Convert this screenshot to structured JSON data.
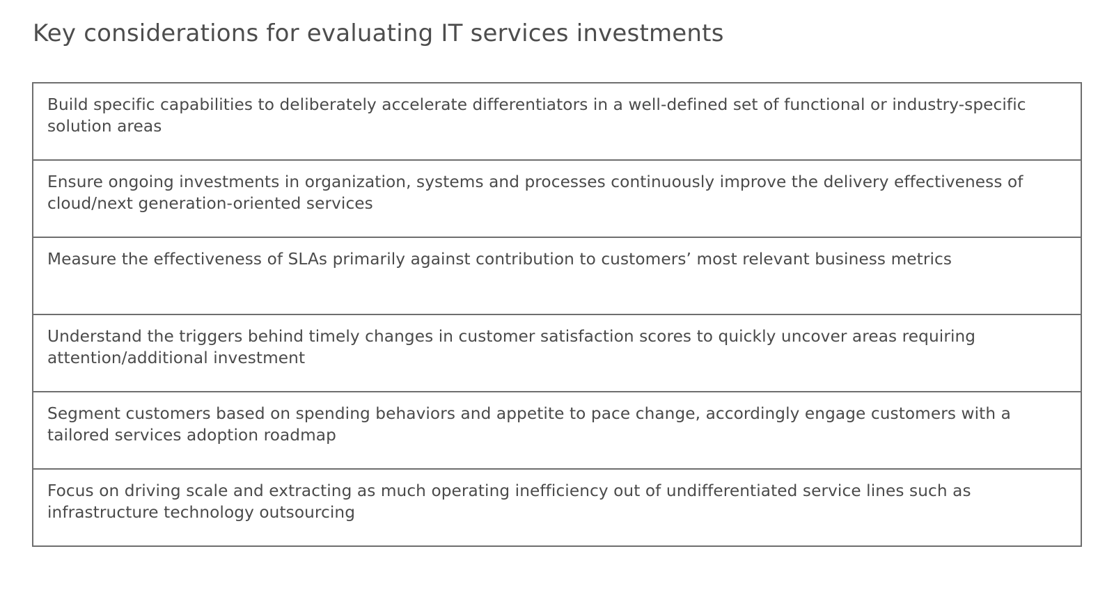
{
  "title": "Key considerations for evaluating IT services investments",
  "considerations": [
    "Build specific capabilities to deliberately accelerate differentiators in a well-defined set of functional or industry-specific solution areas",
    "Ensure ongoing investments in organization, systems and processes continuously improve the delivery effectiveness of cloud/next generation-oriented services",
    "Measure the effectiveness of SLAs primarily against contribution to customers’ most relevant business metrics",
    "Understand the triggers behind timely changes in customer satisfaction scores to quickly uncover areas requiring attention/additional investment",
    "Segment customers based on spending behaviors and appetite to pace change, accordingly engage customers with a tailored services adoption roadmap",
    "Focus on driving scale and extracting as much operating inefficiency out of undifferentiated service lines such as infrastructure technology outsourcing"
  ]
}
